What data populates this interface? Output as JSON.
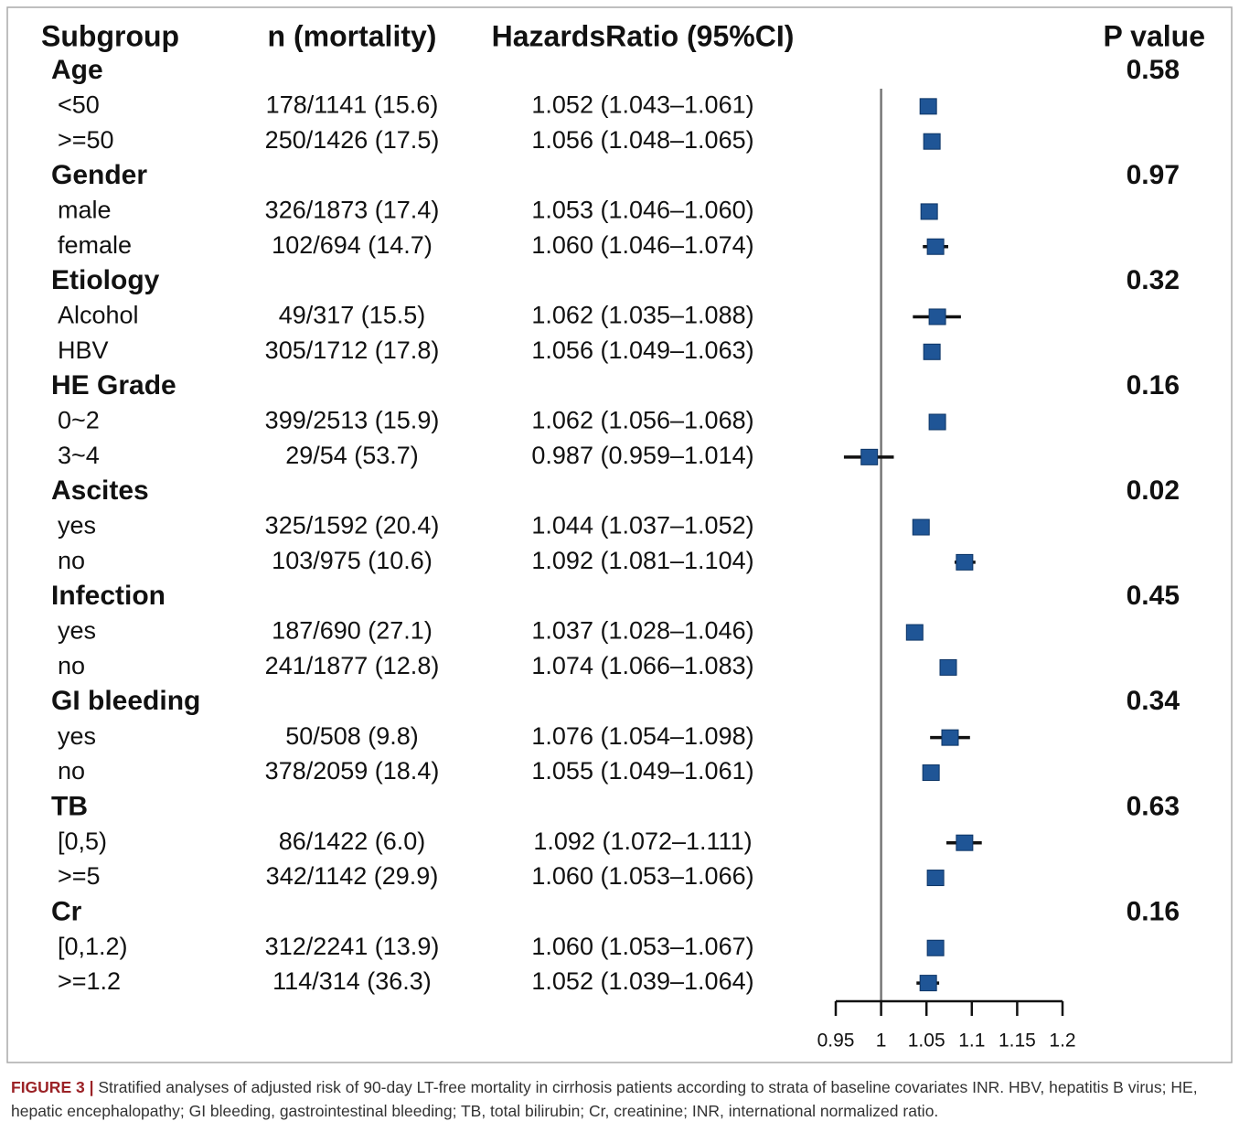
{
  "chart_data": {
    "type": "forest",
    "headers": [
      "Subgroup",
      "n (mortality)",
      "HazardsRatio (95%CI)",
      "P value"
    ],
    "groups": [
      {
        "name": "Age",
        "p_value": 0.58,
        "rows": [
          {
            "label": "<50",
            "n": "178/1141 (15.6)",
            "hr": 1.052,
            "lower": 1.043,
            "upper": 1.061,
            "ci_label": "1.052 (1.043–1.061)"
          },
          {
            "label": ">=50",
            "n": "250/1426 (17.5)",
            "hr": 1.056,
            "lower": 1.048,
            "upper": 1.065,
            "ci_label": "1.056 (1.048–1.065)"
          }
        ]
      },
      {
        "name": "Gender",
        "p_value": 0.97,
        "rows": [
          {
            "label": "male",
            "n": "326/1873 (17.4)",
            "hr": 1.053,
            "lower": 1.046,
            "upper": 1.06,
            "ci_label": "1.053 (1.046–1.060)"
          },
          {
            "label": "female",
            "n": "102/694 (14.7)",
            "hr": 1.06,
            "lower": 1.046,
            "upper": 1.074,
            "ci_label": "1.060 (1.046–1.074)"
          }
        ]
      },
      {
        "name": "Etiology",
        "p_value": 0.32,
        "rows": [
          {
            "label": "Alcohol",
            "n": "49/317 (15.5)",
            "hr": 1.062,
            "lower": 1.035,
            "upper": 1.088,
            "ci_label": "1.062 (1.035–1.088)"
          },
          {
            "label": "HBV",
            "n": "305/1712 (17.8)",
            "hr": 1.056,
            "lower": 1.049,
            "upper": 1.063,
            "ci_label": "1.056 (1.049–1.063)"
          }
        ]
      },
      {
        "name": "HE Grade",
        "p_value": 0.16,
        "rows": [
          {
            "label": "0~2",
            "n": "399/2513 (15.9)",
            "hr": 1.062,
            "lower": 1.056,
            "upper": 1.068,
            "ci_label": "1.062 (1.056–1.068)"
          },
          {
            "label": "3~4",
            "n": "29/54 (53.7)",
            "hr": 0.987,
            "lower": 0.959,
            "upper": 1.014,
            "ci_label": "0.987 (0.959–1.014)"
          }
        ]
      },
      {
        "name": "Ascites",
        "p_value": 0.02,
        "rows": [
          {
            "label": "yes",
            "n": "325/1592 (20.4)",
            "hr": 1.044,
            "lower": 1.037,
            "upper": 1.052,
            "ci_label": "1.044 (1.037–1.052)"
          },
          {
            "label": "no",
            "n": "103/975 (10.6)",
            "hr": 1.092,
            "lower": 1.081,
            "upper": 1.104,
            "ci_label": "1.092 (1.081–1.104)"
          }
        ]
      },
      {
        "name": "Infection",
        "p_value": 0.45,
        "rows": [
          {
            "label": "yes",
            "n": "187/690 (27.1)",
            "hr": 1.037,
            "lower": 1.028,
            "upper": 1.046,
            "ci_label": "1.037 (1.028–1.046)"
          },
          {
            "label": "no",
            "n": "241/1877 (12.8)",
            "hr": 1.074,
            "lower": 1.066,
            "upper": 1.083,
            "ci_label": "1.074 (1.066–1.083)"
          }
        ]
      },
      {
        "name": "GI bleeding",
        "p_value": 0.34,
        "rows": [
          {
            "label": "yes",
            "n": "50/508 (9.8)",
            "hr": 1.076,
            "lower": 1.054,
            "upper": 1.098,
            "ci_label": "1.076 (1.054–1.098)"
          },
          {
            "label": "no",
            "n": "378/2059 (18.4)",
            "hr": 1.055,
            "lower": 1.049,
            "upper": 1.061,
            "ci_label": "1.055 (1.049–1.061)"
          }
        ]
      },
      {
        "name": "TB",
        "p_value": 0.63,
        "rows": [
          {
            "label": "[0,5)",
            "n": "86/1422 (6.0)",
            "hr": 1.092,
            "lower": 1.072,
            "upper": 1.111,
            "ci_label": "1.092 (1.072–1.111)"
          },
          {
            "label": ">=5",
            "n": "342/1142 (29.9)",
            "hr": 1.06,
            "lower": 1.053,
            "upper": 1.066,
            "ci_label": "1.060 (1.053–1.066)"
          }
        ]
      },
      {
        "name": "Cr",
        "p_value": 0.16,
        "rows": [
          {
            "label": "[0,1.2)",
            "n": "312/2241 (13.9)",
            "hr": 1.06,
            "lower": 1.053,
            "upper": 1.067,
            "ci_label": "1.060 (1.053–1.067)"
          },
          {
            "label": ">=1.2",
            "n": "114/314 (36.3)",
            "hr": 1.052,
            "lower": 1.039,
            "upper": 1.064,
            "ci_label": "1.052 (1.039–1.064)"
          }
        ]
      }
    ],
    "xlim": [
      0.95,
      1.2
    ],
    "xticks": [
      0.95,
      1,
      1.05,
      1.1,
      1.15,
      1.2
    ],
    "reference_line": 1,
    "marker_color": "#1f5596",
    "ci_color": "#111111"
  },
  "caption": {
    "label": "FIGURE 3 |",
    "text": "Stratified analyses of adjusted risk of 90-day LT-free mortality in cirrhosis patients according to strata of baseline covariates INR. HBV, hepatitis B virus; HE, hepatic encephalopathy; GI bleeding, gastrointestinal bleeding; TB, total bilirubin; Cr, creatinine; INR, international normalized ratio."
  }
}
